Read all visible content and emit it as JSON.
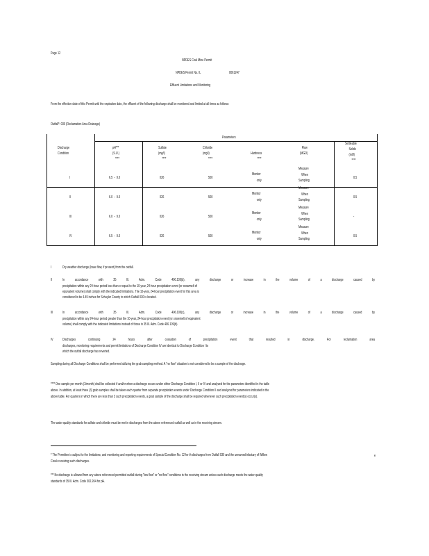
{
  "header": {
    "page": "Page 12",
    "title": "NPDES Coal Mine Permit",
    "permit_label": "NPDES Permit No. IL",
    "permit_number": "0061247",
    "section": "Effluent Limitations and Monitoring"
  },
  "intro": "From the effective date of this Permit until the expiration date, the effluent of the following discharge shall be monitored and limited at all times as follows:",
  "outfall": "Outfall*: 030   (Reclamation Area Drainage)",
  "table": {
    "parameters_label": "Parameters",
    "headers": {
      "condition": [
        "Discharge",
        "Condition"
      ],
      "ph": [
        "pH***",
        "(S.U.)",
        "****"
      ],
      "sulfate": [
        "Sulfate",
        "(mg/l)",
        "****"
      ],
      "chloride": [
        "Chloride",
        "(mg/l)",
        "****"
      ],
      "hardness": [
        "Hardness",
        "****"
      ],
      "flow": [
        "Flow",
        "(MGD)"
      ],
      "settleable": [
        "Settleable",
        "Solids",
        "(ml/l)",
        "****"
      ]
    },
    "rows": [
      {
        "condition": "I",
        "ph": "6.5  -  9.0",
        "sulfate": "026",
        "chloride": "500",
        "hardness": [
          "Monitor",
          "only"
        ],
        "flow": [
          "Measure",
          "When",
          "Sampling"
        ],
        "settleable": "0.5"
      },
      {
        "condition": "II",
        "ph": "6.0  -  9.0",
        "sulfate": "026",
        "chloride": "500",
        "hardness": [
          "Monitor",
          "only"
        ],
        "flow": [
          "Measure",
          "When",
          "Sampling"
        ],
        "settleable": "0.5"
      },
      {
        "condition": "III",
        "ph": "6.0  -  9.0",
        "sulfate": "026",
        "chloride": "500",
        "hardness": [
          "Monitor",
          "only"
        ],
        "flow": [
          "Measure",
          "When",
          "Sampling"
        ],
        "settleable": "-"
      },
      {
        "condition": "IV",
        "ph": "6.5  -  9.0",
        "sulfate": "026",
        "chloride": "500",
        "hardness": [
          "Monitor",
          "only"
        ],
        "flow": [
          "Measure",
          "When",
          "Sampling"
        ],
        "settleable": "0.5"
      }
    ]
  },
  "conditions": [
    {
      "label": "I",
      "first": "Dry weather discharge (base flow, if present) from the outfall.",
      "rest": ""
    },
    {
      "label": "II",
      "first": "In accordance with 35 Ill. Adm. Code 406.109(b), any discharge or increase in the volume of a discharge caused by",
      "rest": "precipitation within any 24-hour period less than or equal to the 10-year, 24-hour precipitation event (or snowmelt of equivalent volume) shall comply with the indicated limitations. The 10-year, 24-hour precipitation event for this area is considered to be 4.45 inches for Schuyler County in which Outfall 030 is located."
    },
    {
      "label": "III",
      "first": "In accordance with 35 Ill. Adm. Code 406.109(c), any discharge or increase in the volume of a discharge caused by",
      "rest": "precipitation within any 24-hour period greater than the 10-year, 24-hour precipitation event (or snowmelt of equivalent volume) shall comply with the indicated limitations instead of those in 35 Ill. Adm. Code 406.109(b)."
    },
    {
      "label": "IV",
      "first": "Discharges continuing 24 hours after cessation of precipitation event that resulted in discharge. For reclamation area",
      "rest": "discharges, monitoring requirements and permit limitations of Discharge Condition IV are identical to Discharge Condition I to which the outfall discharge has reverted."
    }
  ],
  "notes": [
    "Sampling during all Discharge Conditions shall be performed utilizing the grab sampling method. A \"no flow\" situation is not considered to be a sample of the discharge.",
    "**** One sample per month (1/month) shall be collected if and/or when a discharge occurs under either Discharge Condition I, II or IV and analyzed for the parameters identified in the table above. In addition, at least three (3) grab samples shall be taken each quarter from separate precipitation events under Discharge Condition II and analyzed for parameters indicated in the above table. For quarters in which there are less than 3 such precipitation events, a grab sample of the discharge shall be required whenever such precipitation event(s) occur(s).",
    "The water quality standards for sulfate and chloride must be met in discharges from the above referenced outfall as well as in the receiving stream."
  ],
  "footnotes": [
    "*  The Permittee is subject to the limitations, and monitoring and reporting requirements of Special Condition No. 12 for th discharges from Outfall 030 and the unnamed tributary of Willow Creek receiving such discharges.",
    "***  No discharge is allowed from any above referenced permitted outfall during \"low flow\" or \"no flow\" conditions in the receiving stream unless such discharge meets the water quality standards of 35 Ill. Adm. Code 302.204 for pH."
  ],
  "stray_char": "e"
}
